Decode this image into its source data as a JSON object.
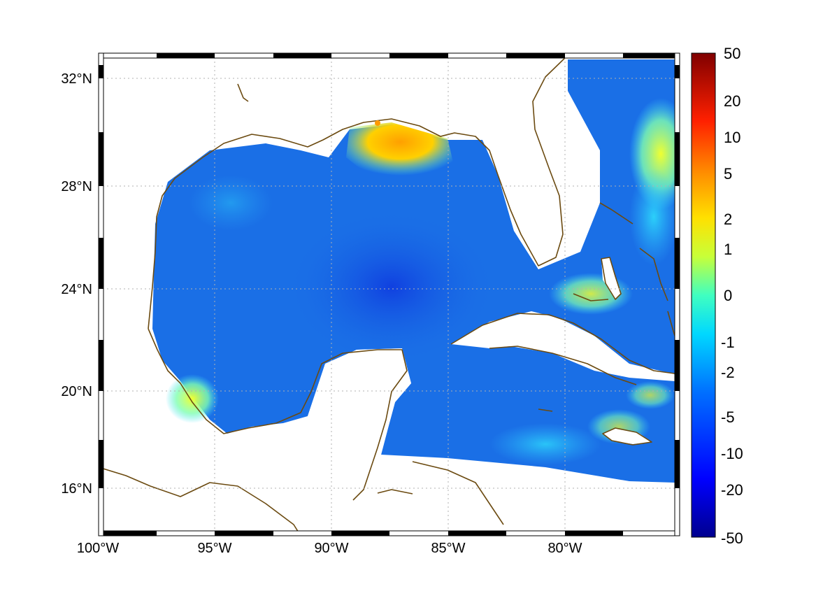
{
  "map": {
    "region": "Gulf of Mexico",
    "lon_range": [
      -100,
      -75
    ],
    "lat_range": [
      14,
      33
    ],
    "x_tick_labels": [
      "100°W",
      "95°W",
      "90°W",
      "85°W",
      "80°W"
    ],
    "y_tick_labels": [
      "32°N",
      "28°N",
      "24°N",
      "20°N",
      "16°N"
    ],
    "frame_style": "black-white checkered border",
    "grid": "dotted gray lines",
    "land_color": "#ffffff",
    "coastline_color": "#6b4a10"
  },
  "colorbar": {
    "colormap": "jet",
    "tick_labels": [
      "50",
      "20",
      "10",
      "5",
      "2",
      "1",
      "0",
      "-1",
      "-2",
      "-5",
      "-10",
      "-20",
      "-50"
    ],
    "orientation": "vertical",
    "placement": "right"
  },
  "colors": {
    "jet_dark_blue": "#00008f",
    "jet_blue": "#0050ff",
    "jet_cyan": "#00ffff",
    "jet_yellow": "#ffff00",
    "jet_red": "#ff0000",
    "jet_dark_red": "#800000",
    "ocean_typical": "#1a6fe6"
  }
}
